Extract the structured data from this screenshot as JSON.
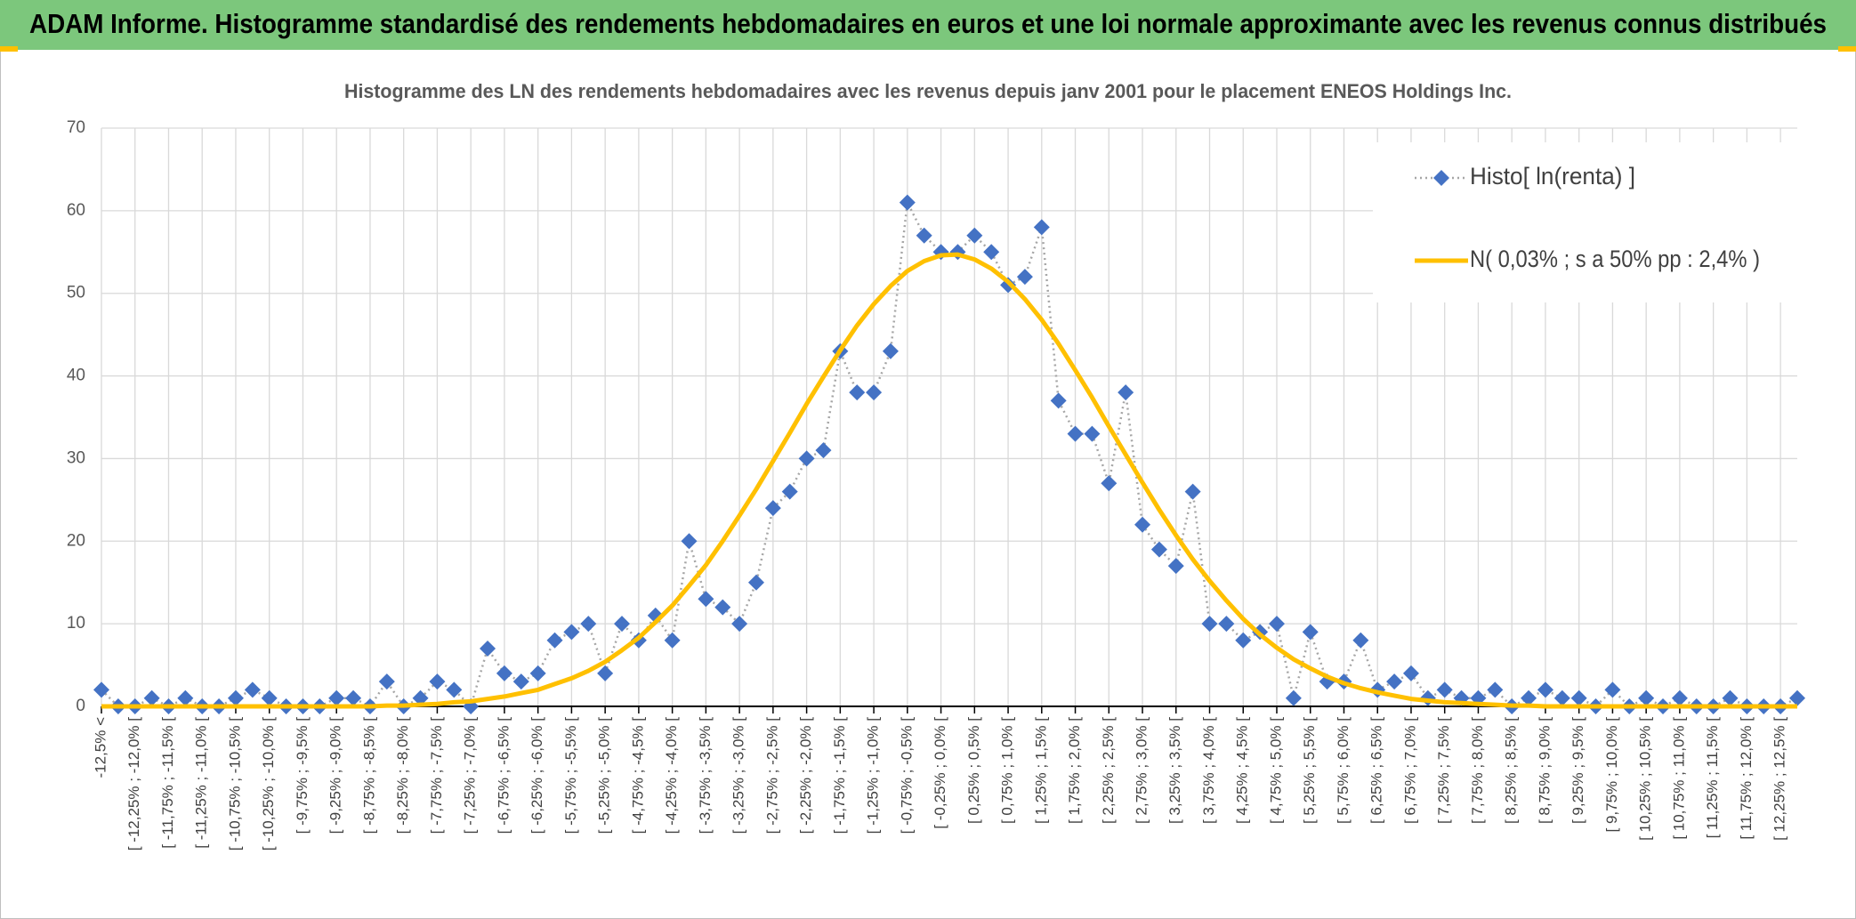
{
  "header": {
    "title": "ADAM Informe. Histogramme standardisé des rendements hebdomadaires en euros et une loi normale approximante avec les revenus connus distribués"
  },
  "chart_data": {
    "type": "line",
    "title": "Histogramme des LN des rendements hebdomadaires avec les revenus depuis janv 2001 pour le placement ENEOS Holdings Inc.",
    "categories": [
      "-12,5% <",
      null,
      "[ -12,25% ; -12,0% [",
      null,
      "[ -11,75% ; -11,5% [",
      null,
      "[ -11,25% ; -11,0% [",
      null,
      "[ -10,75% ; -10,5% [",
      null,
      "[ -10,25% ; -10,0% [",
      null,
      "[ -9,75% ; -9,5% [",
      null,
      "[ -9,25% ; -9,0% [",
      null,
      "[ -8,75% ; -8,5% [",
      null,
      "[ -8,25% ; -8,0% [",
      null,
      "[ -7,75% ; -7,5% [",
      null,
      "[ -7,25% ; -7,0% [",
      null,
      "[ -6,75% ; -6,5% [",
      null,
      "[ -6,25% ; -6,0% [",
      null,
      "[ -5,75% ; -5,5% [",
      null,
      "[ -5,25% ; -5,0% [",
      null,
      "[ -4,75% ; -4,5% [",
      null,
      "[ -4,25% ; -4,0% [",
      null,
      "[ -3,75% ; -3,5% [",
      null,
      "[ -3,25% ; -3,0% [",
      null,
      "[ -2,75% ; -2,5% [",
      null,
      "[ -2,25% ; -2,0% [",
      null,
      "[ -1,75% ; -1,5% [",
      null,
      "[ -1,25% ; -1,0% [",
      null,
      "[ -0,75% ; -0,5% [",
      null,
      "[ -0,25% ; 0,0% [",
      null,
      "[ 0,25% ; 0,5% [",
      null,
      "[ 0,75% ; 1,0% [",
      null,
      "[ 1,25% ; 1,5% [",
      null,
      "[ 1,75% ; 2,0% [",
      null,
      "[ 2,25% ; 2,5% [",
      null,
      "[ 2,75% ; 3,0% [",
      null,
      "[ 3,25% ; 3,5% [",
      null,
      "[ 3,75% ; 4,0% [",
      null,
      "[ 4,25% ; 4,5% [",
      null,
      "[ 4,75% ; 5,0% [",
      null,
      "[ 5,25% ; 5,5% [",
      null,
      "[ 5,75% ; 6,0% [",
      null,
      "[ 6,25% ; 6,5% [",
      null,
      "[ 6,75% ; 7,0% [",
      null,
      "[ 7,25% ; 7,5% [",
      null,
      "[ 7,75% ; 8,0% [",
      null,
      "[ 8,25% ; 8,5% [",
      null,
      "[ 8,75% ; 9,0% [",
      null,
      "[ 9,25% ; 9,5% [",
      null,
      "[ 9,75% ; 10,0% [",
      null,
      "[ 10,25% ; 10,5% [",
      null,
      "[ 10,75% ; 11,0% [",
      null,
      "[ 11,25% ; 11,5% [",
      null,
      "[ 11,75% ; 12,0% [",
      null,
      "[ 12,25% ; 12,5% [",
      null
    ],
    "series": [
      {
        "name": "Histo[ ln(renta) ]",
        "color": "#4472c4",
        "marker": "diamond",
        "line_style": "dotted",
        "line_color": "#a6a6a6",
        "values": [
          2,
          0,
          0,
          1,
          0,
          1,
          0,
          0,
          1,
          2,
          1,
          0,
          0,
          0,
          1,
          1,
          0,
          3,
          0,
          1,
          3,
          2,
          0,
          7,
          4,
          3,
          4,
          8,
          9,
          10,
          4,
          10,
          8,
          11,
          8,
          20,
          13,
          12,
          10,
          15,
          24,
          26,
          30,
          31,
          43,
          38,
          38,
          43,
          61,
          57,
          55,
          55,
          57,
          55,
          51,
          52,
          58,
          37,
          33,
          33,
          27,
          38,
          22,
          19,
          17,
          26,
          10,
          10,
          8,
          9,
          10,
          1,
          9,
          3,
          3,
          8,
          2,
          3,
          4,
          1,
          2,
          1,
          1,
          2,
          0,
          1,
          2,
          1,
          1,
          0,
          2,
          0,
          1,
          0,
          1,
          0,
          0,
          1,
          0,
          0,
          0,
          1
        ]
      },
      {
        "name": "N( 0,03% ; s a 50% pp : 2,4% )",
        "color": "#ffc000",
        "marker": "none",
        "line_style": "solid",
        "values": [
          0,
          0,
          0,
          0,
          0,
          0,
          0,
          0,
          0,
          0,
          0,
          0,
          0,
          0,
          0,
          0,
          0,
          0.1,
          0.1,
          0.2,
          0.3,
          0.5,
          0.6,
          0.9,
          1.2,
          1.6,
          2.0,
          2.7,
          3.4,
          4.3,
          5.4,
          6.8,
          8.3,
          10.2,
          12.2,
          14.6,
          17.1,
          20.0,
          23.1,
          26.3,
          29.7,
          33.1,
          36.6,
          39.9,
          43.1,
          46.1,
          48.7,
          50.9,
          52.7,
          53.9,
          54.6,
          54.7,
          54.1,
          53.0,
          51.4,
          49.3,
          46.8,
          43.9,
          40.7,
          37.4,
          33.9,
          30.5,
          27.1,
          23.8,
          20.7,
          17.8,
          15.2,
          12.8,
          10.6,
          8.7,
          7.1,
          5.7,
          4.6,
          3.6,
          2.8,
          2.2,
          1.7,
          1.3,
          0.9,
          0.7,
          0.5,
          0.4,
          0.3,
          0.2,
          0.1,
          0.1,
          0,
          0,
          0,
          0,
          0,
          0,
          0,
          0,
          0,
          0,
          0,
          0,
          0,
          0,
          0,
          0
        ]
      }
    ],
    "ylim": [
      0,
      70
    ],
    "yticks": [
      0,
      10,
      20,
      30,
      40,
      50,
      60,
      70
    ],
    "grid": true,
    "legend": "top-right"
  }
}
